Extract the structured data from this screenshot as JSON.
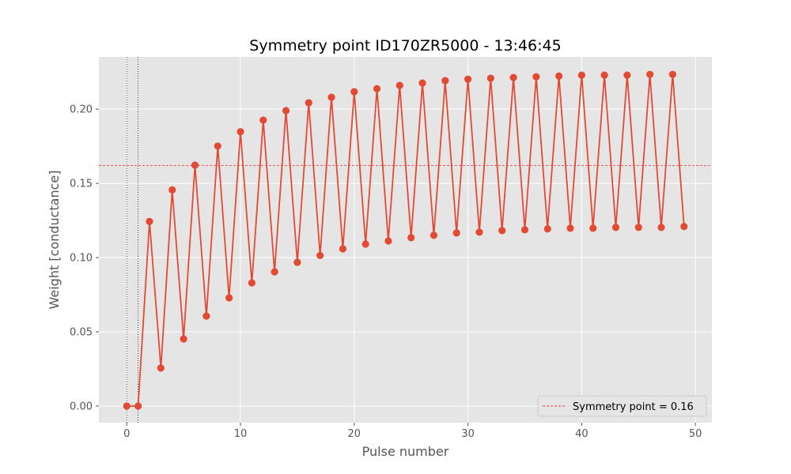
{
  "chart_data": {
    "type": "line",
    "title": "Symmetry point ID170ZR5000 - 13:46:45",
    "xlabel": "Pulse number",
    "ylabel": "Weight [conductance]",
    "xlim": [
      -2.45,
      51.45
    ],
    "ylim": [
      -0.0112,
      0.2352
    ],
    "xticks": [
      0,
      10,
      20,
      30,
      40,
      50
    ],
    "yticks": [
      0.0,
      0.05,
      0.1,
      0.15,
      0.2
    ],
    "ytick_labels": [
      "0.00",
      "0.05",
      "0.10",
      "0.15",
      "0.20"
    ],
    "grid": true,
    "legend_position": "lower-right",
    "series": [
      {
        "x": [
          0,
          1,
          2,
          3,
          4,
          5,
          6,
          7,
          8,
          9,
          10,
          11,
          12,
          13,
          14,
          15,
          16,
          17,
          18,
          19,
          20,
          21,
          22,
          23,
          24,
          25,
          26,
          27,
          28,
          29,
          30,
          31,
          32,
          33,
          34,
          35,
          36,
          37,
          38,
          39,
          40,
          41,
          42,
          43,
          44,
          45,
          46,
          47,
          48,
          49
        ],
        "values": [
          0.0,
          0.0,
          0.1243,
          0.0256,
          0.1456,
          0.0452,
          0.1623,
          0.0606,
          0.1751,
          0.0729,
          0.1848,
          0.0829,
          0.1926,
          0.0904,
          0.199,
          0.0968,
          0.2043,
          0.1014,
          0.208,
          0.1059,
          0.2117,
          0.1091,
          0.2138,
          0.1112,
          0.216,
          0.1134,
          0.2176,
          0.115,
          0.2192,
          0.1166,
          0.2202,
          0.1171,
          0.2208,
          0.1182,
          0.2213,
          0.1187,
          0.2218,
          0.1193,
          0.2223,
          0.1198,
          0.2229,
          0.1198,
          0.2229,
          0.1203,
          0.2229,
          0.1203,
          0.2234,
          0.1203,
          0.2234,
          0.1209
        ],
        "color": "#E24A33"
      }
    ],
    "hline": {
      "y": 0.162,
      "color": "#FF0000",
      "style": "dashed",
      "label": "Symmetry point = 0.16"
    },
    "vlines": [
      {
        "x": 0,
        "color": "#000000",
        "style": "dotted"
      },
      {
        "x": 1,
        "color": "#000000",
        "style": "dotted"
      }
    ],
    "colors": {
      "plot_background": "#E5E5E5",
      "grid": "#FFFFFF"
    }
  }
}
